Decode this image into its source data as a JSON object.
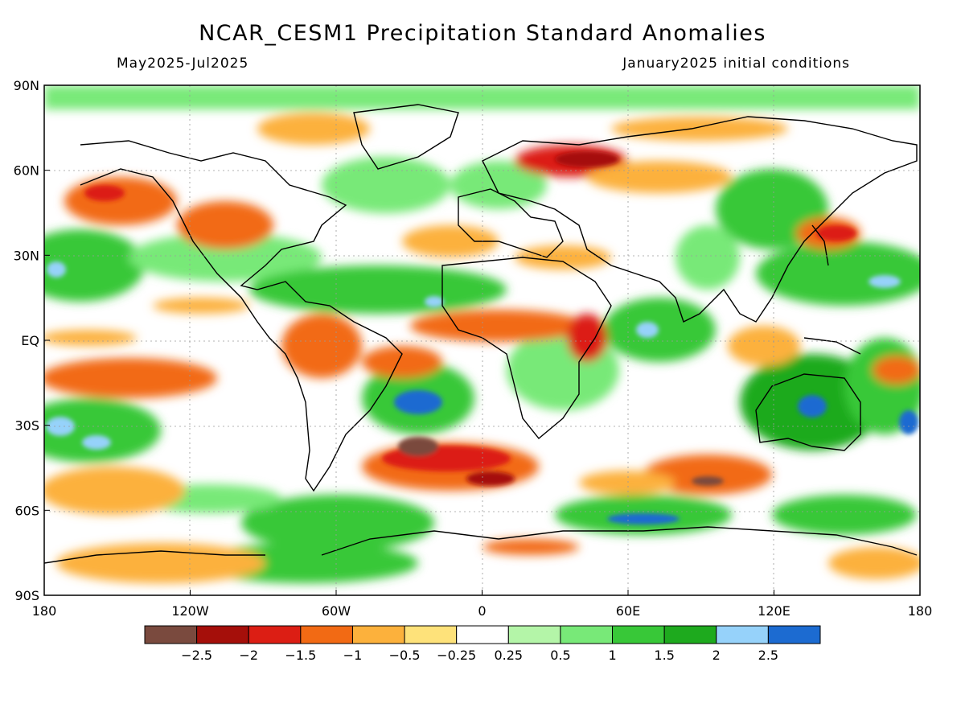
{
  "title": "NCAR_CESM1 Precipitation Standard Anomalies",
  "subtitle_left": "May2025-Jul2025",
  "subtitle_right": "January2025 initial conditions",
  "map": {
    "lat_labels": [
      "90N",
      "60N",
      "30N",
      "EQ",
      "30S",
      "60S",
      "90S"
    ],
    "lon_labels": [
      "180",
      "120W",
      "60W",
      "0",
      "60E",
      "120E",
      "180"
    ]
  },
  "colorbar": {
    "colors": [
      "#7a4a3e",
      "#a50f0a",
      "#dc1e14",
      "#f26a14",
      "#fcb13c",
      "#fee27a",
      "#ffffff",
      "#b4f5a8",
      "#78e978",
      "#38c838",
      "#1eaa1e",
      "#96d2fa",
      "#1c6bd1"
    ],
    "labels": [
      "-2.5",
      "-2",
      "-1.5",
      "-1",
      "-0.5",
      "-0.25",
      "0.25",
      "0.5",
      "1",
      "1.5",
      "2",
      "2.5"
    ]
  },
  "colors": {
    "land_outline": "#000000",
    "frame": "#000000"
  }
}
